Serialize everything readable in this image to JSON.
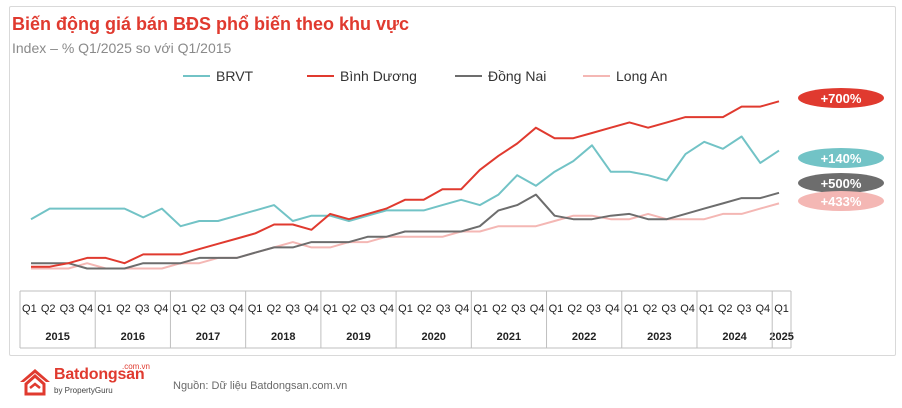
{
  "header": {
    "title": "Biến động giá bán BĐS phổ biến theo khu vực",
    "subtitle": "Index – % Q1/2025 so với Q1/2015"
  },
  "footer": {
    "source": "Nguồn: Dữ liệu Batdongsan.com.vn",
    "logo_main": "Batdongsan",
    "logo_sup": ".com.vn",
    "logo_sub": "by PropertyGuru"
  },
  "chart_data": {
    "type": "line",
    "quarters": [
      "Q1",
      "Q2",
      "Q3",
      "Q4",
      "Q1",
      "Q2",
      "Q3",
      "Q4",
      "Q1",
      "Q2",
      "Q3",
      "Q4",
      "Q1",
      "Q2",
      "Q3",
      "Q4",
      "Q1",
      "Q2",
      "Q3",
      "Q4",
      "Q1",
      "Q2",
      "Q3",
      "Q4",
      "Q1",
      "Q2",
      "Q3",
      "Q4",
      "Q1",
      "Q2",
      "Q3",
      "Q4",
      "Q1",
      "Q2",
      "Q3",
      "Q4",
      "Q1",
      "Q2",
      "Q3",
      "Q4",
      "Q1"
    ],
    "years": [
      "2015",
      "2016",
      "2017",
      "2018",
      "2019",
      "2020",
      "2021",
      "2022",
      "2023",
      "2024",
      "2025"
    ],
    "ylim": [
      0,
      100
    ],
    "grid": false,
    "legend": "top",
    "series": [
      {
        "name": "BRVT",
        "color": "#72c3c6",
        "end_label": "+140%",
        "values": [
          30,
          36,
          36,
          36,
          36,
          36,
          31,
          36,
          26,
          29,
          29,
          32,
          35,
          38,
          29,
          32,
          32,
          29,
          32,
          35,
          35,
          35,
          38,
          41,
          38,
          44,
          55,
          49,
          57,
          63,
          72,
          57,
          57,
          55,
          52,
          67,
          74,
          70,
          77,
          62,
          69
        ]
      },
      {
        "name": "Bình Dương",
        "color": "#e03a2f",
        "end_label": "+700%",
        "values": [
          3,
          3,
          5,
          8,
          8,
          5,
          10,
          10,
          10,
          13,
          16,
          19,
          22,
          27,
          27,
          24,
          33,
          30,
          33,
          36,
          41,
          41,
          47,
          47,
          58,
          66,
          73,
          82,
          76,
          76,
          79,
          82,
          85,
          82,
          85,
          88,
          88,
          88,
          94,
          94,
          97
        ]
      },
      {
        "name": "Đồng Nai",
        "color": "#6d6d6d",
        "end_label": "+500%",
        "values": [
          5,
          5,
          5,
          2,
          2,
          2,
          5,
          5,
          5,
          8,
          8,
          8,
          11,
          14,
          14,
          17,
          17,
          17,
          20,
          20,
          23,
          23,
          23,
          23,
          26,
          35,
          38,
          44,
          32,
          30,
          30,
          32,
          33,
          30,
          30,
          33,
          36,
          39,
          42,
          42,
          45
        ]
      },
      {
        "name": "Long An",
        "color": "#f4b7b4",
        "end_label": "+433%",
        "values": [
          2,
          2,
          2,
          5,
          2,
          2,
          2,
          2,
          5,
          5,
          8,
          8,
          11,
          14,
          17,
          14,
          14,
          17,
          17,
          20,
          20,
          20,
          20,
          23,
          23,
          26,
          26,
          26,
          29,
          32,
          32,
          30,
          30,
          33,
          30,
          30,
          30,
          33,
          33,
          36,
          39
        ]
      }
    ]
  }
}
